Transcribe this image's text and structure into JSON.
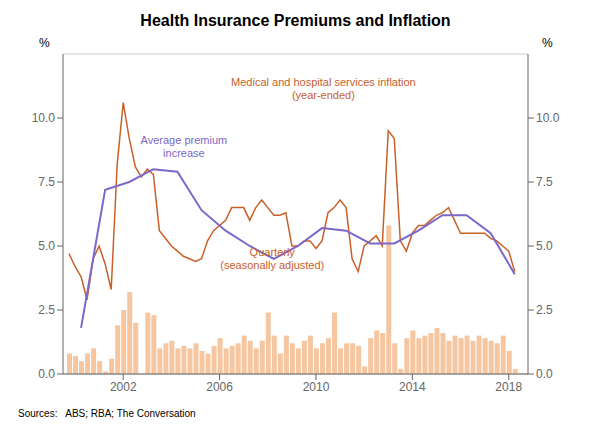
{
  "chart_data": {
    "type": "bar",
    "title": "Health Insurance Premiums and Inflation",
    "ylabel": "%",
    "y2label": "%",
    "source": "Sources:   ABS; RBA; The Conversation",
    "xlim": [
      1999.5,
      2018.8
    ],
    "xticks": [
      2002,
      2006,
      2010,
      2014,
      2018
    ],
    "ylim": [
      0.0,
      12.5
    ],
    "yticks": [
      {
        "value": 0,
        "label": "0.0"
      },
      2.5,
      {
        "value": 5,
        "label": "5.0"
      },
      7.5,
      {
        "value": 10,
        "label": "10.0"
      }
    ],
    "y2lim": [
      0.0,
      12.5
    ],
    "y2ticks": [
      {
        "value": 0,
        "label": "0.0"
      },
      2.5,
      {
        "value": 5,
        "label": "5.0"
      },
      7.5,
      {
        "value": 10,
        "label": "10.0"
      }
    ],
    "grid": true,
    "series": [
      {
        "type": "bar",
        "color": "#f5c6a0",
        "x": [
          1999.75,
          2000.0,
          2000.25,
          2000.5,
          2000.75,
          2001.0,
          2001.25,
          2001.5,
          2001.75,
          2002.0,
          2002.25,
          2002.5,
          2002.75,
          2003.0,
          2003.25,
          2003.5,
          2003.75,
          2004.0,
          2004.25,
          2004.5,
          2004.75,
          2005.0,
          2005.25,
          2005.5,
          2005.75,
          2006.0,
          2006.25,
          2006.5,
          2006.75,
          2007.0,
          2007.25,
          2007.5,
          2007.75,
          2008.0,
          2008.25,
          2008.5,
          2008.75,
          2009.0,
          2009.25,
          2009.5,
          2009.75,
          2010.0,
          2010.25,
          2010.5,
          2010.75,
          2011.0,
          2011.25,
          2011.5,
          2011.75,
          2012.0,
          2012.25,
          2012.5,
          2012.75,
          2013.0,
          2013.25,
          2013.5,
          2013.75,
          2014.0,
          2014.25,
          2014.5,
          2014.75,
          2015.0,
          2015.25,
          2015.5,
          2015.75,
          2016.0,
          2016.25,
          2016.5,
          2016.75,
          2017.0,
          2017.25,
          2017.5,
          2017.75,
          2018.0,
          2018.25
        ],
        "values": [
          0.8,
          0.7,
          0.5,
          0.8,
          1.0,
          0.5,
          0.1,
          0.6,
          1.9,
          2.5,
          3.2,
          2.0,
          0.0,
          2.4,
          2.3,
          1.0,
          1.2,
          1.3,
          1.0,
          1.1,
          1.0,
          1.2,
          0.9,
          0.8,
          1.1,
          1.4,
          1.0,
          1.1,
          1.2,
          1.5,
          1.3,
          1.0,
          1.3,
          2.4,
          1.5,
          0.8,
          1.5,
          1.2,
          1.0,
          1.3,
          1.5,
          1.0,
          1.2,
          1.4,
          2.4,
          1.0,
          1.2,
          1.2,
          1.1,
          0.3,
          1.4,
          1.7,
          1.6,
          5.8,
          1.2,
          0.2,
          1.4,
          1.7,
          1.4,
          1.5,
          1.6,
          1.8,
          1.6,
          1.3,
          1.5,
          1.4,
          1.5,
          1.3,
          1.5,
          1.4,
          1.3,
          1.2,
          1.5,
          0.9,
          0.2
        ]
      },
      {
        "type": "line",
        "color": "#c8602a",
        "x": [
          1999.75,
          2000.0,
          2000.25,
          2000.5,
          2000.75,
          2001.0,
          2001.25,
          2001.5,
          2001.75,
          2002.0,
          2002.25,
          2002.5,
          2002.75,
          2003.0,
          2003.25,
          2003.5,
          2003.75,
          2004.0,
          2004.25,
          2004.5,
          2004.75,
          2005.0,
          2005.25,
          2005.5,
          2005.75,
          2006.0,
          2006.25,
          2006.5,
          2006.75,
          2007.0,
          2007.25,
          2007.5,
          2007.75,
          2008.0,
          2008.25,
          2008.5,
          2008.75,
          2009.0,
          2009.25,
          2009.5,
          2009.75,
          2010.0,
          2010.25,
          2010.5,
          2010.75,
          2011.0,
          2011.25,
          2011.5,
          2011.75,
          2012.0,
          2012.25,
          2012.5,
          2012.75,
          2013.0,
          2013.25,
          2013.5,
          2013.75,
          2014.0,
          2014.25,
          2014.5,
          2014.75,
          2015.0,
          2015.25,
          2015.5,
          2015.75,
          2016.0,
          2016.25,
          2016.5,
          2016.75,
          2017.0,
          2017.25,
          2017.5,
          2017.75,
          2018.0,
          2018.25
        ],
        "values": [
          4.7,
          4.2,
          3.8,
          2.9,
          4.5,
          5.0,
          4.3,
          3.3,
          8.2,
          10.6,
          9.2,
          8.1,
          7.7,
          8.0,
          7.8,
          5.6,
          5.3,
          5.0,
          4.8,
          4.6,
          4.5,
          4.4,
          4.5,
          5.2,
          5.6,
          5.8,
          6.0,
          6.5,
          6.5,
          6.5,
          6.0,
          6.5,
          6.8,
          6.5,
          6.2,
          6.2,
          6.3,
          5.0,
          5.0,
          5.2,
          5.2,
          4.9,
          5.2,
          6.3,
          6.5,
          6.8,
          6.5,
          4.5,
          4.0,
          5.0,
          5.2,
          5.4,
          5.0,
          9.5,
          9.2,
          5.2,
          4.8,
          5.5,
          5.8,
          5.8,
          6.0,
          6.2,
          6.3,
          6.5,
          6.0,
          5.5,
          5.5,
          5.5,
          5.5,
          5.5,
          5.3,
          5.2,
          5.0,
          4.8,
          4.0
        ]
      },
      {
        "type": "line",
        "color": "#7b68c8",
        "x": [
          2000.25,
          2001.25,
          2002.25,
          2003.25,
          2004.25,
          2005.25,
          2006.25,
          2007.25,
          2008.25,
          2009.25,
          2010.25,
          2011.25,
          2012.25,
          2013.25,
          2014.25,
          2015.25,
          2016.25,
          2017.25,
          2018.25
        ],
        "values": [
          1.8,
          7.2,
          7.5,
          8.0,
          7.9,
          6.4,
          5.6,
          5.0,
          4.5,
          5.0,
          5.7,
          5.6,
          5.1,
          5.1,
          5.6,
          6.2,
          6.2,
          5.5,
          3.9
        ]
      }
    ],
    "annotations": [
      {
        "text": "Medical and hospital services inflation\n(year-ended)",
        "color": "#c8602a"
      },
      {
        "text": "Average premium\nincrease",
        "color": "#7b68c8"
      },
      {
        "text": "Quarterly\n(seasonally adjusted)",
        "color": "#c8602a"
      }
    ]
  }
}
